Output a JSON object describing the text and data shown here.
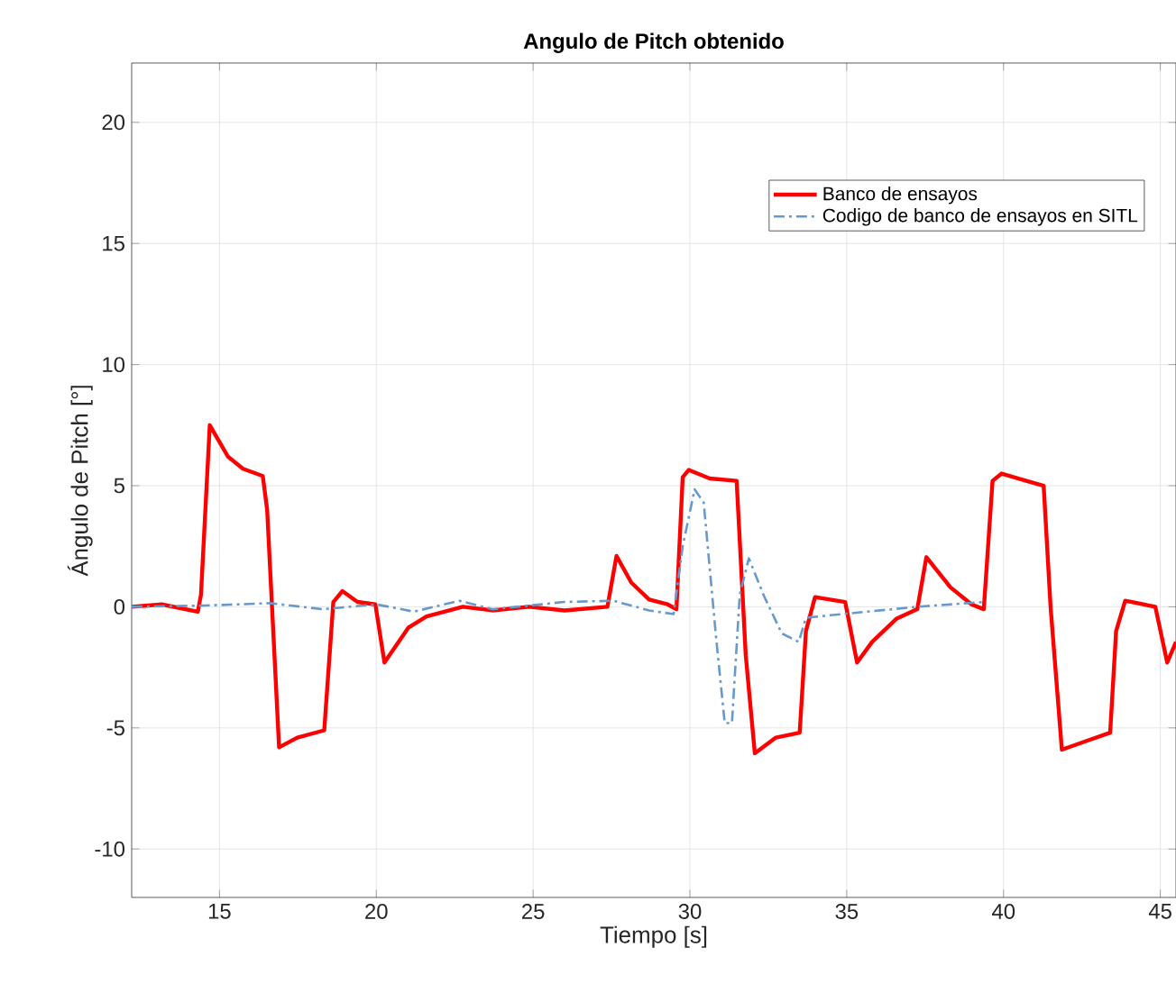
{
  "chart_data": {
    "type": "line",
    "title": "Angulo de Pitch obtenido",
    "xlabel": "Tiempo [s]",
    "ylabel": "Ángulo de Pitch [°]",
    "xlim": [
      12.2,
      45.5
    ],
    "ylim": [
      -12,
      22.45
    ],
    "xticks": [
      15,
      20,
      25,
      30,
      35,
      40,
      45
    ],
    "yticks": [
      -10,
      -5,
      0,
      5,
      10,
      15,
      20
    ],
    "grid": true,
    "legend": "top right",
    "series": [
      {
        "name": "Banco de ensayos",
        "color": "#ff0000",
        "line_style": "solid",
        "x": [
          12.2,
          13.16,
          14.31,
          14.41,
          14.69,
          15.27,
          15.75,
          16.38,
          16.52,
          16.9,
          17.48,
          18.34,
          18.63,
          18.92,
          19.4,
          19.97,
          20.26,
          21.03,
          21.6,
          22.76,
          23.7,
          24.87,
          26.0,
          27.37,
          27.66,
          28.13,
          28.7,
          29.29,
          29.57,
          29.77,
          29.96,
          30.63,
          31.49,
          31.78,
          32.07,
          32.74,
          33.5,
          33.7,
          33.99,
          34.47,
          34.95,
          35.33,
          35.81,
          36.58,
          37.25,
          37.54,
          38.31,
          38.98,
          39.37,
          39.65,
          39.94,
          40.6,
          41.28,
          41.5,
          41.86,
          42.73,
          43.4,
          43.59,
          43.88,
          44.84,
          45.22,
          45.5
        ],
        "values": [
          0,
          0.1,
          -0.2,
          0.5,
          7.5,
          6.2,
          5.7,
          5.4,
          4.0,
          -5.8,
          -5.4,
          -5.1,
          0.2,
          0.65,
          0.2,
          0.1,
          -2.3,
          -0.85,
          -0.4,
          0,
          -0.15,
          0,
          -0.15,
          0,
          2.1,
          1.0,
          0.3,
          0.1,
          -0.1,
          5.35,
          5.65,
          5.3,
          5.2,
          -2.0,
          -6.05,
          -5.4,
          -5.2,
          -1.0,
          0.4,
          0.3,
          0.2,
          -2.3,
          -1.45,
          -0.5,
          -0.1,
          2.05,
          0.8,
          0.1,
          -0.1,
          5.2,
          5.5,
          5.25,
          5.0,
          0,
          -5.9,
          -5.5,
          -5.2,
          -1.0,
          0.25,
          0.0,
          -2.3,
          -1.45
        ]
      },
      {
        "name": "Codigo de banco de ensayos en SITL",
        "color": "#6699cc",
        "line_style": "dashdotted",
        "x": [
          12.2,
          14.5,
          16.6,
          18.3,
          20.0,
          21.2,
          22.66,
          23.7,
          26.0,
          27.56,
          28.7,
          29.48,
          29.77,
          30.15,
          30.44,
          30.83,
          31.11,
          31.34,
          31.59,
          31.88,
          32.36,
          32.93,
          33.47,
          33.7,
          34.47,
          37.25,
          39.37
        ],
        "values": [
          0,
          0.05,
          0.15,
          -0.1,
          0.1,
          -0.2,
          0.25,
          -0.1,
          0.2,
          0.25,
          -0.15,
          -0.3,
          2.5,
          4.85,
          4.3,
          -1.2,
          -4.8,
          -4.8,
          0.5,
          2.0,
          0.45,
          -1.1,
          -1.45,
          -0.45,
          -0.35,
          0.0,
          0.2
        ]
      }
    ]
  }
}
